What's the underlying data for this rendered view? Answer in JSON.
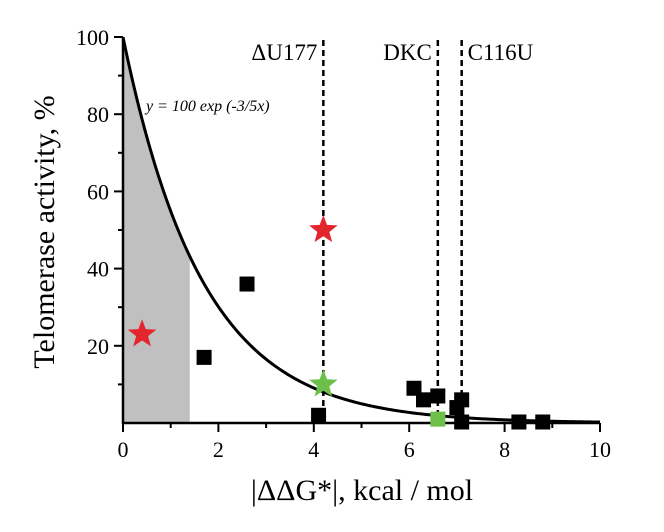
{
  "chart_data": {
    "type": "scatter",
    "title": "",
    "xlabel": "|ΔΔG*|, kcal / mol",
    "ylabel": "Telomerase activity, %",
    "xlim": [
      0,
      10
    ],
    "ylim": [
      0,
      100
    ],
    "xticks": [
      0,
      2,
      4,
      6,
      8,
      10
    ],
    "yticks": [
      20,
      40,
      60,
      80,
      100
    ],
    "xtick_labels": [
      "0",
      "2",
      "4",
      "6",
      "8",
      "10"
    ],
    "ytick_labels": [
      "20",
      "40",
      "60",
      "80",
      "100"
    ],
    "shaded_region": {
      "x_from": 0,
      "x_to": 1.4,
      "color": "#c0c0c0"
    },
    "curve": {
      "label": "y = 100 exp (-3/5x)",
      "amplitude": 100,
      "rate": 0.6,
      "color": "#000000"
    },
    "vertical_lines": [
      {
        "label": "ΔU177",
        "x": 4.2
      },
      {
        "label": "DKC",
        "x": 6.6
      },
      {
        "label": "C116U",
        "x": 7.1
      }
    ],
    "series": [
      {
        "name": "black squares",
        "marker": "square",
        "color": "#000000",
        "points": [
          [
            1.7,
            17
          ],
          [
            2.6,
            36
          ],
          [
            4.1,
            2
          ],
          [
            6.1,
            9
          ],
          [
            6.3,
            6
          ],
          [
            6.6,
            7
          ],
          [
            7.0,
            4
          ],
          [
            7.1,
            6
          ],
          [
            7.1,
            0
          ],
          [
            8.3,
            0
          ],
          [
            8.8,
            0
          ]
        ]
      },
      {
        "name": "red stars",
        "marker": "star",
        "color": "#e3262d",
        "points": [
          [
            0.4,
            23
          ],
          [
            4.2,
            50
          ]
        ]
      },
      {
        "name": "green star",
        "marker": "star",
        "color": "#6cc04a",
        "points": [
          [
            4.2,
            10
          ]
        ]
      },
      {
        "name": "green square",
        "marker": "square",
        "color": "#6cc04a",
        "points": [
          [
            6.6,
            1
          ]
        ]
      }
    ]
  }
}
